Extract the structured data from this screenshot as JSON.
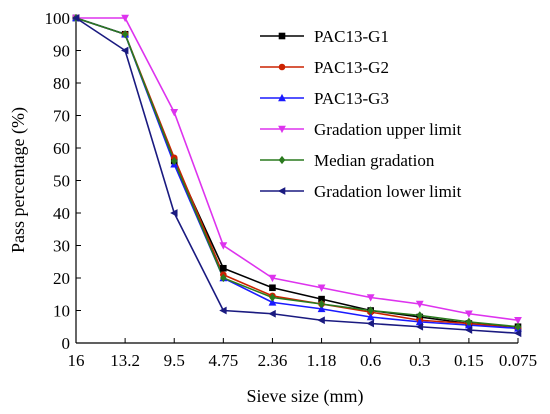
{
  "chart_data": {
    "type": "line",
    "title": "",
    "xlabel": "Sieve size (mm)",
    "ylabel": "Pass percentage (%)",
    "categories": [
      "16",
      "13.2",
      "9.5",
      "4.75",
      "2.36",
      "1.18",
      "0.6",
      "0.3",
      "0.15",
      "0.075"
    ],
    "ylim": [
      0,
      100
    ],
    "yticks": [
      0,
      10,
      20,
      30,
      40,
      50,
      60,
      70,
      80,
      90,
      100
    ],
    "grid": false,
    "legend_position": "top-right",
    "series": [
      {
        "name": "PAC13-G1",
        "color": "#000000",
        "marker": "square",
        "values": [
          100,
          95,
          56,
          23,
          17,
          13.5,
          10,
          8,
          6,
          5
        ]
      },
      {
        "name": "PAC13-G2",
        "color": "#cc2200",
        "marker": "circle",
        "values": [
          100,
          95,
          57,
          21,
          14.5,
          12,
          9.5,
          7,
          6,
          4.5
        ]
      },
      {
        "name": "PAC13-G3",
        "color": "#1a1aff",
        "marker": "triangle-up",
        "values": [
          100,
          95,
          55,
          20,
          12.5,
          10.5,
          8,
          6.5,
          5.5,
          4.5
        ]
      },
      {
        "name": "Gradation upper limit",
        "color": "#dd33ee",
        "marker": "triangle-down",
        "values": [
          100,
          100,
          71,
          30,
          20,
          17,
          14,
          12,
          9,
          7
        ]
      },
      {
        "name": "Median gradation",
        "color": "#2a7a1e",
        "marker": "diamond",
        "values": [
          100,
          95,
          56,
          20,
          14,
          12,
          10,
          8.5,
          6.5,
          5
        ]
      },
      {
        "name": "Gradation lower limit",
        "color": "#1a1a80",
        "marker": "left-triangle",
        "values": [
          100,
          90,
          40,
          10,
          9,
          7,
          6,
          5,
          4,
          3
        ]
      }
    ]
  }
}
